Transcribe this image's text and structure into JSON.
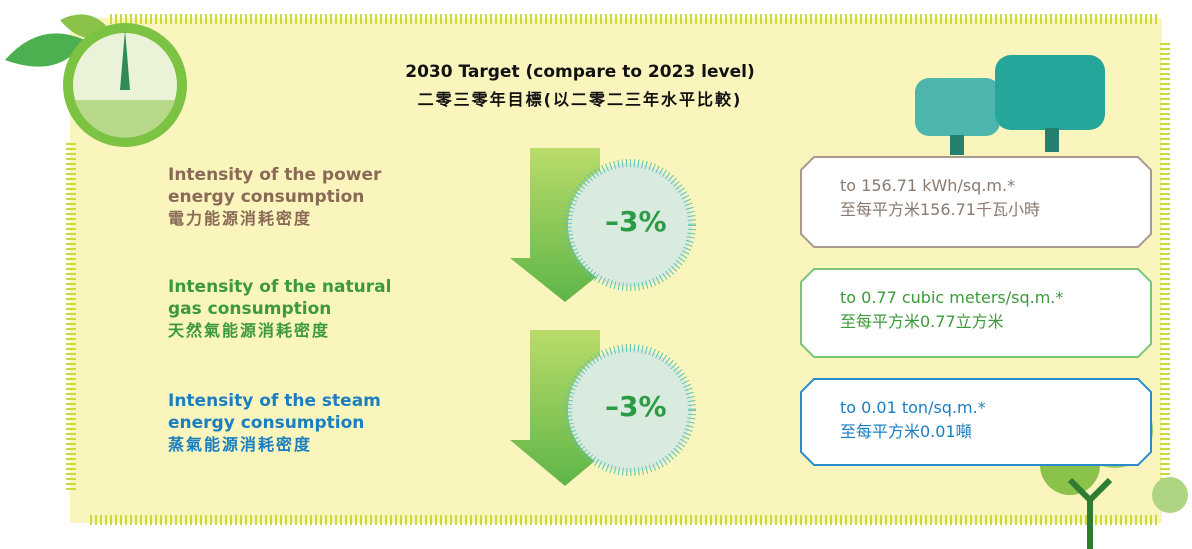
{
  "header": {
    "title": "2030 Target (compare to 2023 level)",
    "subtitle": "二零三零年目標(以二零二三年水平比較)"
  },
  "items": [
    {
      "name_en": "Intensity of the power energy consumption",
      "name_zh": "電力能源消耗密度",
      "target_en": "to 156.71 kWh/sq.m.*",
      "target_zh": "至每平方米156.71千瓦小時"
    },
    {
      "name_en": "Intensity of the natural gas consumption",
      "name_zh": "天然氣能源消耗密度",
      "target_en": "to 0.77 cubic meters/sq.m.*",
      "target_zh": "至每平方米0.77立方米"
    },
    {
      "name_en": "Intensity of the steam energy consumption",
      "name_zh": "蒸氣能源消耗密度",
      "target_en": "to 0.01 ton/sq.m.*",
      "target_zh": "至每平方米0.01噸"
    }
  ],
  "reductions": [
    "–3%",
    "–3%"
  ]
}
